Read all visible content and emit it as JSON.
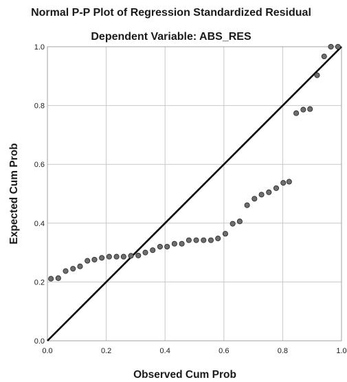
{
  "chart_data": {
    "type": "scatter",
    "title": "Normal P-P Plot of Regression Standardized Residual",
    "subtitle": "Dependent Variable: ABS_RES",
    "xlabel": "Observed Cum Prob",
    "ylabel": "Expected Cum Prob",
    "xlim": [
      0.0,
      1.0
    ],
    "ylim": [
      0.0,
      1.0
    ],
    "xticks": [
      "0.0",
      "0.2",
      "0.4",
      "0.6",
      "0.8",
      "1.0"
    ],
    "yticks": [
      "0.0",
      "0.2",
      "0.4",
      "0.6",
      "0.8",
      "1.0"
    ],
    "grid": true,
    "reference_line": [
      [
        0.0,
        0.0
      ],
      [
        1.0,
        1.0
      ]
    ],
    "x": [
      0.012,
      0.037,
      0.062,
      0.087,
      0.111,
      0.136,
      0.16,
      0.185,
      0.21,
      0.235,
      0.259,
      0.284,
      0.309,
      0.333,
      0.358,
      0.383,
      0.407,
      0.432,
      0.457,
      0.481,
      0.506,
      0.531,
      0.556,
      0.58,
      0.605,
      0.63,
      0.654,
      0.679,
      0.704,
      0.728,
      0.753,
      0.778,
      0.802,
      0.822,
      0.846,
      0.87,
      0.893,
      0.917,
      0.941,
      0.964,
      0.988
    ],
    "y": [
      0.211,
      0.213,
      0.237,
      0.245,
      0.253,
      0.272,
      0.276,
      0.282,
      0.286,
      0.286,
      0.286,
      0.289,
      0.29,
      0.3,
      0.308,
      0.32,
      0.32,
      0.33,
      0.33,
      0.342,
      0.342,
      0.342,
      0.342,
      0.348,
      0.364,
      0.398,
      0.406,
      0.461,
      0.483,
      0.497,
      0.505,
      0.519,
      0.537,
      0.541,
      0.774,
      0.786,
      0.788,
      0.903,
      0.967,
      1.0,
      1.0
    ],
    "colors": {
      "point_fill": "#6e6e6e",
      "point_stroke": "#2b2b2b",
      "line": "#000000",
      "grid": "#c8c8c8",
      "axes": "#a0a0a0"
    }
  }
}
